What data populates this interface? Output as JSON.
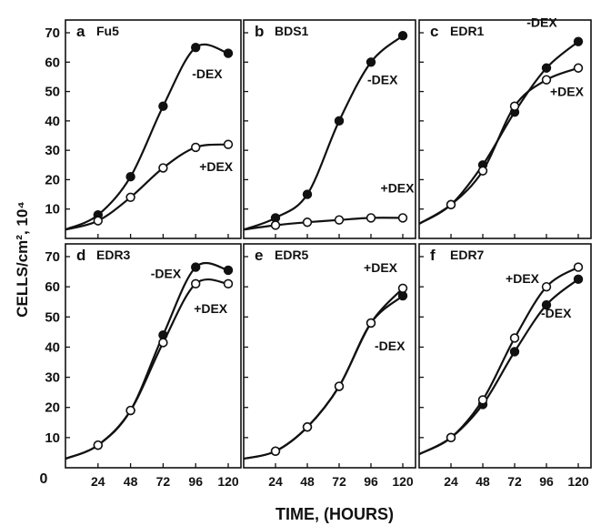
{
  "figure": {
    "xlabel": "TIME, (HOURS)",
    "ylabel": "CELLS/cm², 10⁴",
    "origin_label": "0"
  },
  "chart_data": [
    {
      "type": "line",
      "panel": "a",
      "title": "Fu5",
      "x": [
        0,
        24,
        48,
        72,
        96,
        120
      ],
      "xlim": [
        0,
        120
      ],
      "ylim": [
        0,
        70
      ],
      "yticks": [
        10,
        20,
        30,
        40,
        50,
        60,
        70
      ],
      "xticks": [],
      "series": [
        {
          "name": "-DEX",
          "marker": "filled",
          "x": [
            0,
            24,
            48,
            72,
            96,
            120
          ],
          "values": [
            3,
            8,
            21,
            45,
            65,
            63
          ]
        },
        {
          "name": "+DEX",
          "marker": "open",
          "x": [
            0,
            24,
            48,
            72,
            96,
            120
          ],
          "values": [
            3,
            6,
            14,
            24,
            31,
            32
          ]
        }
      ]
    },
    {
      "type": "line",
      "panel": "b",
      "title": "BDS1",
      "x": [
        0,
        24,
        48,
        72,
        96,
        120
      ],
      "xlim": [
        0,
        120
      ],
      "ylim": [
        0,
        70
      ],
      "yticks": [],
      "xticks": [],
      "series": [
        {
          "name": "-DEX",
          "marker": "filled",
          "x": [
            0,
            24,
            48,
            72,
            96,
            120
          ],
          "values": [
            3,
            7,
            15,
            40,
            60,
            69
          ]
        },
        {
          "name": "+DEX",
          "marker": "open",
          "x": [
            0,
            24,
            48,
            72,
            96,
            120
          ],
          "values": [
            3,
            4.5,
            5.5,
            6.3,
            7,
            7
          ]
        }
      ]
    },
    {
      "type": "line",
      "panel": "c",
      "title": "EDR1",
      "x": [
        0,
        24,
        48,
        72,
        96,
        120
      ],
      "xlim": [
        0,
        120
      ],
      "ylim": [
        0,
        70
      ],
      "yticks": [],
      "xticks": [],
      "series": [
        {
          "name": "-DEX",
          "marker": "filled",
          "x": [
            0,
            24,
            48,
            72,
            96,
            120
          ],
          "values": [
            5,
            11.5,
            25,
            43,
            58,
            67
          ]
        },
        {
          "name": "+DEX",
          "marker": "open",
          "x": [
            0,
            24,
            48,
            72,
            96,
            120
          ],
          "values": [
            5,
            11.5,
            23,
            45,
            54,
            58
          ]
        }
      ]
    },
    {
      "type": "line",
      "panel": "d",
      "title": "EDR3",
      "x": [
        0,
        24,
        48,
        72,
        96,
        120
      ],
      "xlim": [
        0,
        120
      ],
      "ylim": [
        0,
        70
      ],
      "yticks": [
        10,
        20,
        30,
        40,
        50,
        60,
        70
      ],
      "xticks": [
        24,
        48,
        72,
        96,
        120
      ],
      "series": [
        {
          "name": "-DEX",
          "marker": "filled",
          "x": [
            0,
            24,
            48,
            72,
            96,
            120
          ],
          "values": [
            3,
            7.5,
            19,
            44,
            66.5,
            65.5
          ]
        },
        {
          "name": "+DEX",
          "marker": "open",
          "x": [
            0,
            24,
            48,
            72,
            96,
            120
          ],
          "values": [
            3,
            7.5,
            19,
            41.5,
            61,
            61
          ]
        }
      ]
    },
    {
      "type": "line",
      "panel": "e",
      "title": "EDR5",
      "x": [
        0,
        24,
        48,
        72,
        96,
        120
      ],
      "xlim": [
        0,
        120
      ],
      "ylim": [
        0,
        70
      ],
      "yticks": [],
      "xticks": [
        24,
        48,
        72,
        96,
        120
      ],
      "series": [
        {
          "name": "-DEX",
          "marker": "filled",
          "x": [
            0,
            24,
            48,
            72,
            96,
            120
          ],
          "values": [
            3,
            5.5,
            13.5,
            27,
            48,
            57
          ]
        },
        {
          "name": "+DEX",
          "marker": "open",
          "x": [
            0,
            24,
            48,
            72,
            96,
            120
          ],
          "values": [
            3,
            5.5,
            13.5,
            27,
            48,
            59.5
          ]
        }
      ]
    },
    {
      "type": "line",
      "panel": "f",
      "title": "EDR7",
      "x": [
        0,
        24,
        48,
        72,
        96,
        120
      ],
      "xlim": [
        0,
        120
      ],
      "ylim": [
        0,
        70
      ],
      "yticks": [],
      "xticks": [
        24,
        48,
        72,
        96,
        120
      ],
      "series": [
        {
          "name": "-DEX",
          "marker": "filled",
          "x": [
            0,
            24,
            48,
            72,
            96,
            120
          ],
          "values": [
            4.5,
            10,
            21,
            38.5,
            54,
            62.5
          ]
        },
        {
          "name": "+DEX",
          "marker": "open",
          "x": [
            0,
            24,
            48,
            72,
            96,
            120
          ],
          "values": [
            4.5,
            10,
            22.5,
            43,
            60,
            66.5
          ]
        }
      ]
    }
  ]
}
